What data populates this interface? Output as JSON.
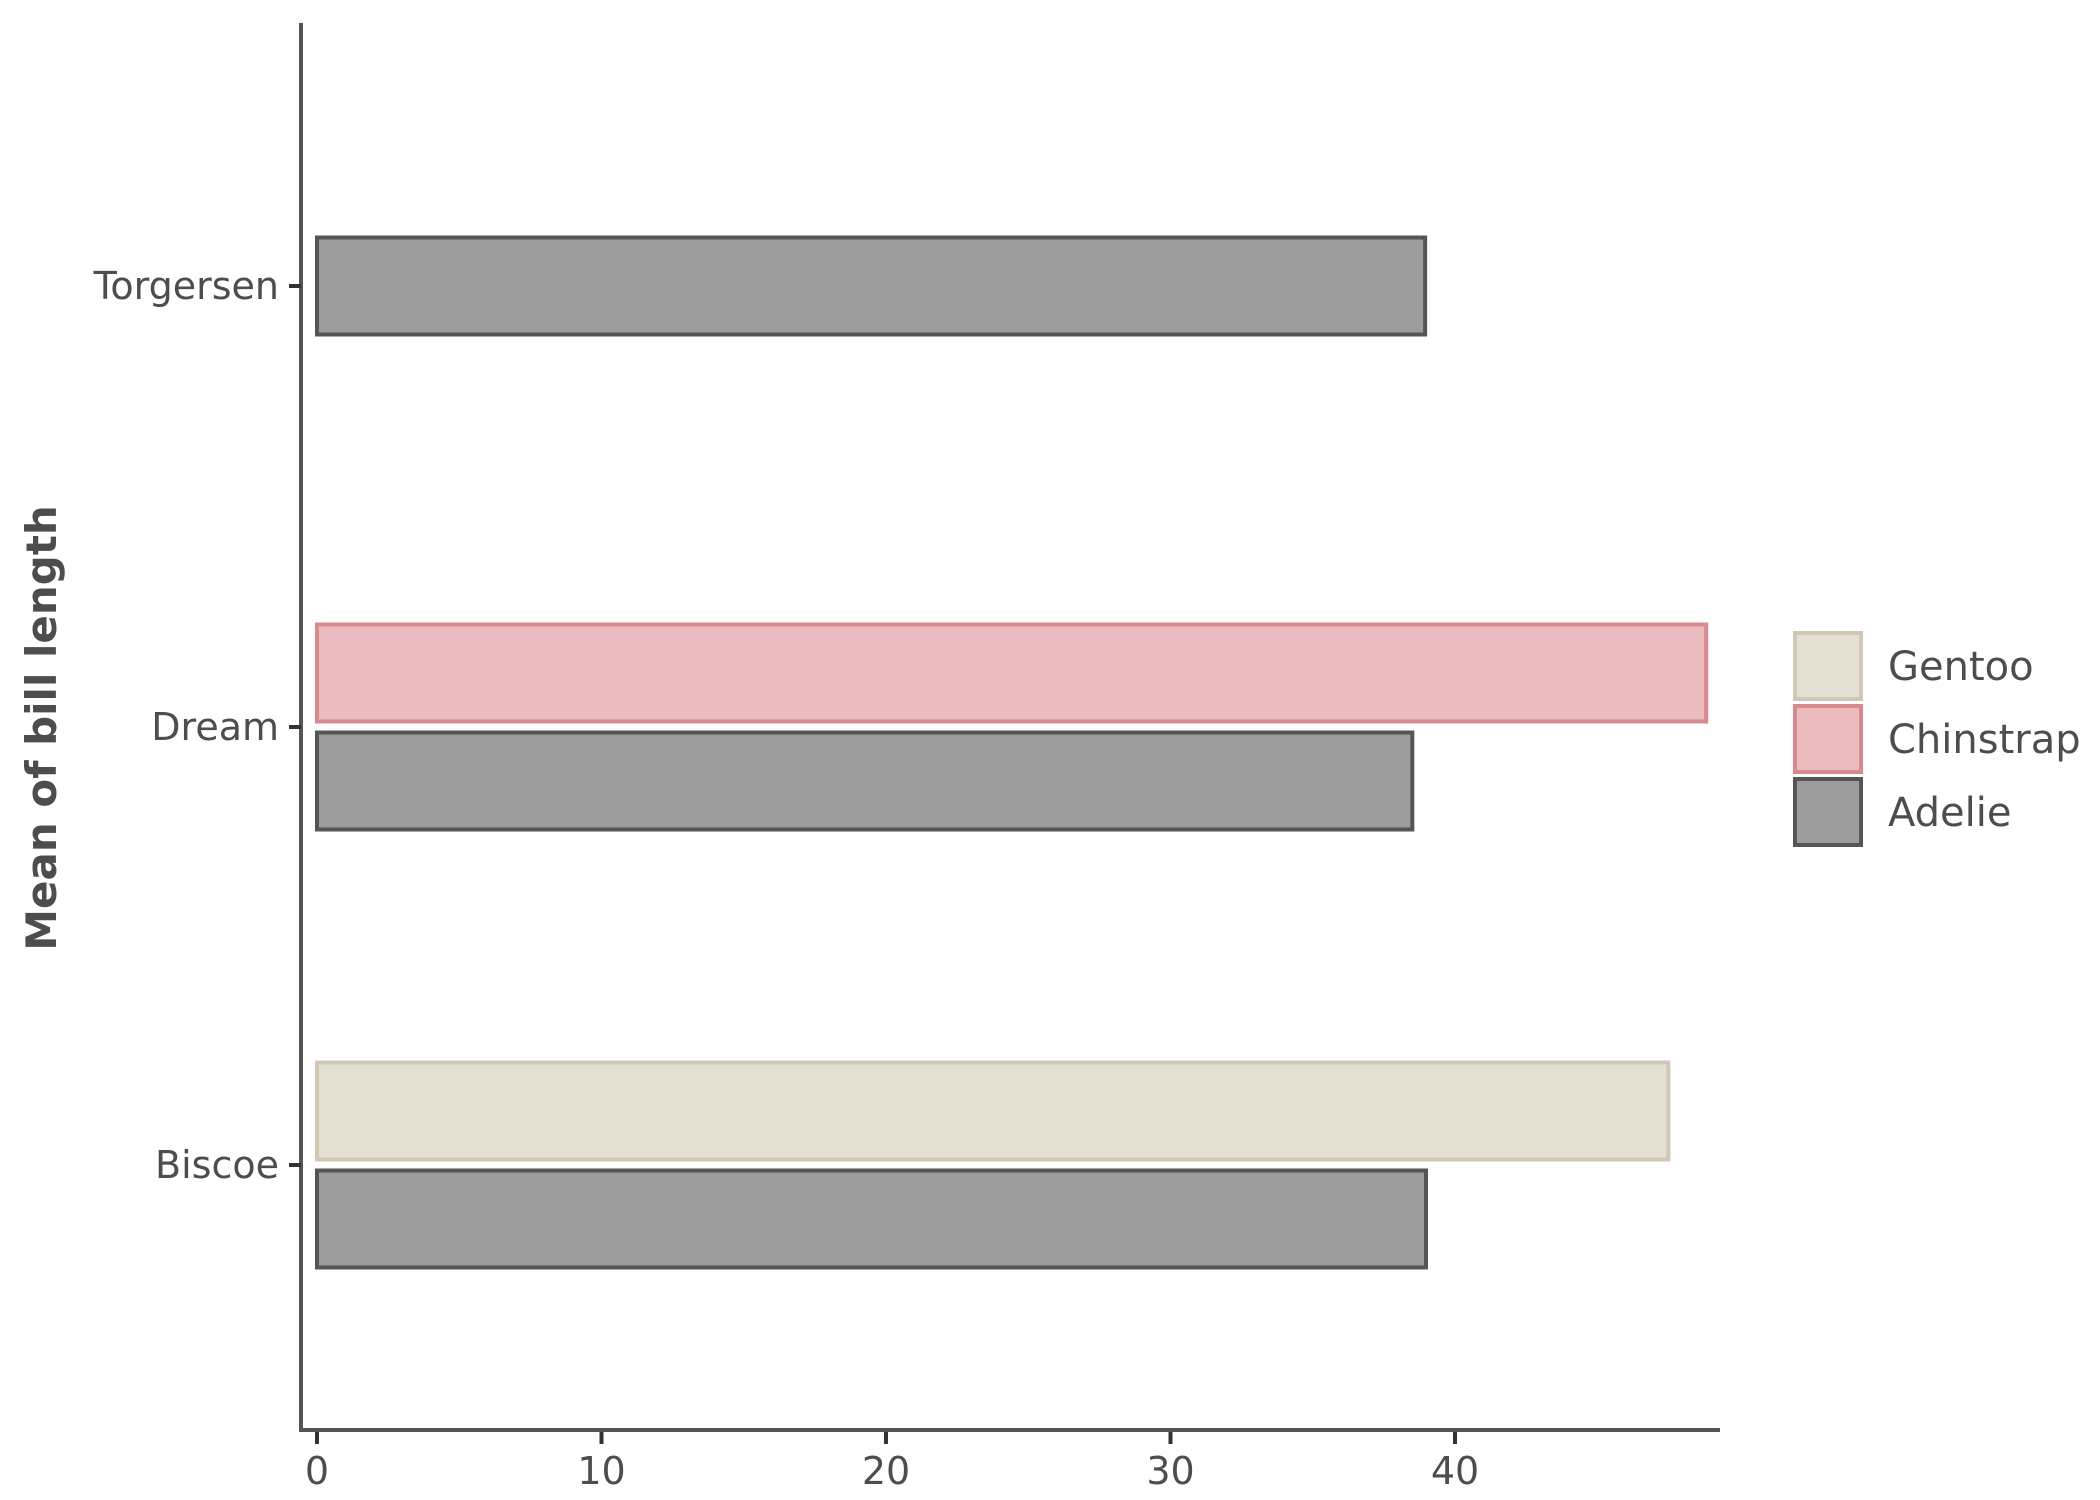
{
  "chart_data": {
    "type": "bar",
    "orientation": "horizontal",
    "title": "",
    "xlabel": "",
    "ylabel": "Mean of bill length",
    "categories": [
      "Biscoe",
      "Dream",
      "Torgersen"
    ],
    "xlim": [
      0,
      50
    ],
    "xticks": [
      0,
      10,
      20,
      30,
      40
    ],
    "grid": false,
    "legend_position": "right",
    "series": [
      {
        "name": "Adelie",
        "color": "#9c9c9c",
        "stroke": "#555555",
        "values": [
          38.98,
          38.5,
          38.95
        ]
      },
      {
        "name": "Chinstrap",
        "color": "#eabcbf",
        "stroke": "#d98a8f",
        "values": [
          null,
          48.83,
          null
        ]
      },
      {
        "name": "Gentoo",
        "color": "#e4e0d4",
        "stroke": "#d0c8b5",
        "values": [
          47.5,
          null,
          null
        ]
      }
    ],
    "legend_order": [
      "Gentoo",
      "Chinstrap",
      "Adelie"
    ]
  }
}
